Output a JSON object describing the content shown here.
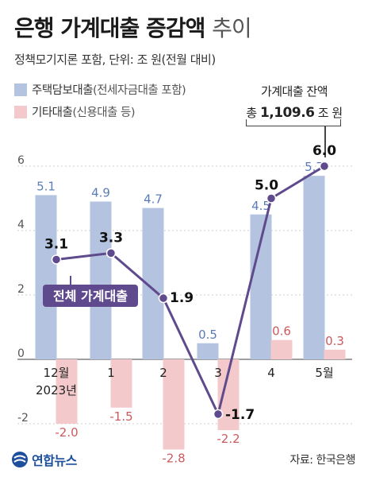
{
  "header": {
    "title_main": "은행 가계대출 증감액",
    "title_light": "추이",
    "subtitle": "정책모기지론 포함, 단위: 조 원(전월 대비)"
  },
  "legend": {
    "main_label": "주택담보대출",
    "main_note": "(전세자금대출 포함)",
    "other_label": "기타대출",
    "other_note": "(신용대출 등)"
  },
  "balance": {
    "label": "가계대출 잔액",
    "prefix": "총",
    "value": "1,109.6",
    "unit": "조 원"
  },
  "footer": {
    "source": "자료: 한국은행",
    "logo": "연합뉴스"
  },
  "colors": {
    "mortgage": "#b3c3e0",
    "other": "#f4c9cc",
    "total_line": "#5e4a8c",
    "mortgage_label": "#5c7cb8",
    "other_label": "#cc5a5e"
  },
  "chart_data": {
    "type": "bar",
    "categories": [
      "12월",
      "1",
      "2",
      "3",
      "4",
      "5월"
    ],
    "year_label": "2023년",
    "ylim": [
      -3.2,
      6.6
    ],
    "yticks": [
      -2,
      0,
      2,
      4,
      6
    ],
    "grid": true,
    "series": [
      {
        "name": "주택담보대출",
        "kind": "bar",
        "values": [
          5.1,
          4.9,
          4.7,
          0.5,
          4.5,
          5.7
        ]
      },
      {
        "name": "기타대출",
        "kind": "bar",
        "values": [
          -2.0,
          -1.5,
          -2.8,
          -2.2,
          0.6,
          0.3
        ]
      },
      {
        "name": "전체 가계대출",
        "kind": "line",
        "values": [
          3.1,
          3.3,
          1.9,
          -1.7,
          5.0,
          6.0
        ]
      }
    ],
    "series_label": "전체 가계대출"
  }
}
